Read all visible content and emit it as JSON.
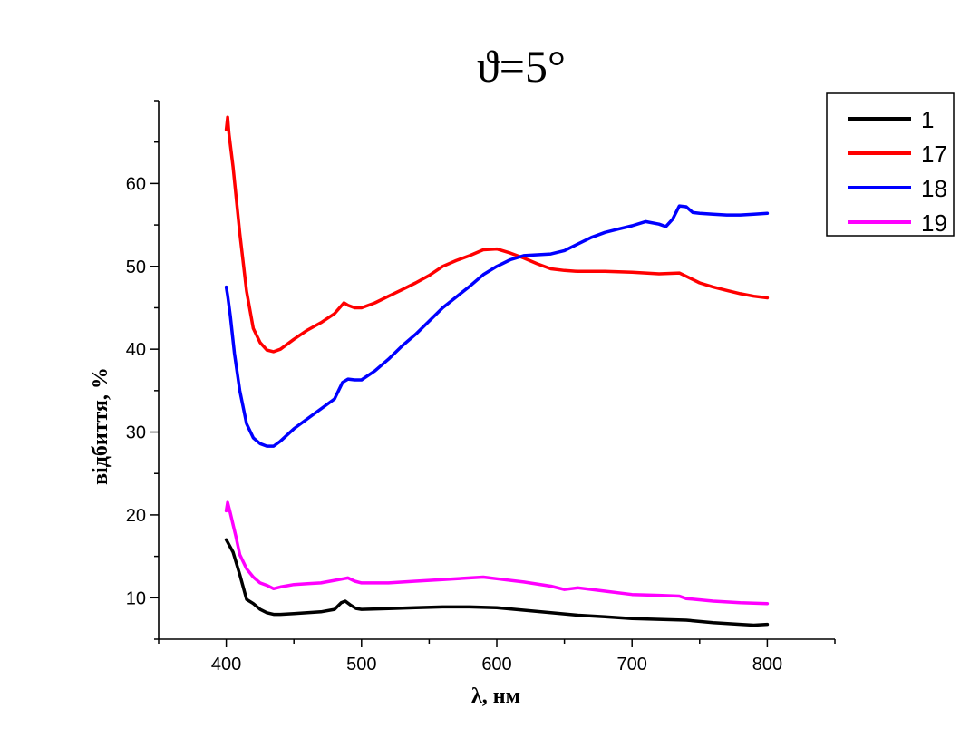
{
  "chart_data": {
    "type": "line",
    "title": "ϑ=5°",
    "xlabel": "λ, нм",
    "ylabel": "відбиття, %",
    "xlim": [
      350,
      850
    ],
    "ylim": [
      5,
      70
    ],
    "x_ticks": [
      400,
      500,
      600,
      700,
      800
    ],
    "y_ticks": [
      10,
      20,
      30,
      40,
      50,
      60
    ],
    "grid": false,
    "legend": "top-right",
    "series": [
      {
        "name": "1",
        "color": "#000000",
        "points": [
          [
            400,
            17
          ],
          [
            405,
            15.5
          ],
          [
            410,
            12.8
          ],
          [
            415,
            9.8
          ],
          [
            420,
            9.3
          ],
          [
            425,
            8.6
          ],
          [
            430,
            8.2
          ],
          [
            435,
            8.0
          ],
          [
            440,
            8.0
          ],
          [
            450,
            8.1
          ],
          [
            460,
            8.2
          ],
          [
            470,
            8.3
          ],
          [
            480,
            8.6
          ],
          [
            485,
            9.4
          ],
          [
            488,
            9.6
          ],
          [
            492,
            9.1
          ],
          [
            496,
            8.7
          ],
          [
            500,
            8.6
          ],
          [
            520,
            8.7
          ],
          [
            540,
            8.8
          ],
          [
            560,
            8.9
          ],
          [
            580,
            8.9
          ],
          [
            600,
            8.8
          ],
          [
            620,
            8.5
          ],
          [
            640,
            8.2
          ],
          [
            660,
            7.9
          ],
          [
            680,
            7.7
          ],
          [
            700,
            7.5
          ],
          [
            720,
            7.4
          ],
          [
            740,
            7.3
          ],
          [
            760,
            7.0
          ],
          [
            780,
            6.8
          ],
          [
            790,
            6.7
          ],
          [
            800,
            6.8
          ]
        ]
      },
      {
        "name": "17",
        "color": "#ff0000",
        "points": [
          [
            400,
            66.5
          ],
          [
            401,
            68
          ],
          [
            402,
            66
          ],
          [
            405,
            62
          ],
          [
            410,
            54
          ],
          [
            415,
            47
          ],
          [
            420,
            42.5
          ],
          [
            425,
            40.8
          ],
          [
            430,
            39.9
          ],
          [
            435,
            39.7
          ],
          [
            440,
            40.0
          ],
          [
            450,
            41.2
          ],
          [
            460,
            42.3
          ],
          [
            470,
            43.2
          ],
          [
            480,
            44.3
          ],
          [
            487,
            45.6
          ],
          [
            490,
            45.3
          ],
          [
            495,
            45.0
          ],
          [
            500,
            45.0
          ],
          [
            510,
            45.6
          ],
          [
            520,
            46.4
          ],
          [
            530,
            47.2
          ],
          [
            540,
            48.0
          ],
          [
            550,
            48.9
          ],
          [
            560,
            50.0
          ],
          [
            570,
            50.7
          ],
          [
            580,
            51.3
          ],
          [
            590,
            52.0
          ],
          [
            600,
            52.1
          ],
          [
            610,
            51.6
          ],
          [
            620,
            51.0
          ],
          [
            630,
            50.3
          ],
          [
            640,
            49.7
          ],
          [
            650,
            49.5
          ],
          [
            660,
            49.4
          ],
          [
            680,
            49.4
          ],
          [
            700,
            49.3
          ],
          [
            720,
            49.1
          ],
          [
            735,
            49.2
          ],
          [
            740,
            48.8
          ],
          [
            750,
            48.0
          ],
          [
            760,
            47.5
          ],
          [
            770,
            47.1
          ],
          [
            780,
            46.7
          ],
          [
            790,
            46.4
          ],
          [
            800,
            46.2
          ]
        ]
      },
      {
        "name": "18",
        "color": "#0000ff",
        "points": [
          [
            400,
            47.5
          ],
          [
            401,
            46.5
          ],
          [
            403,
            44
          ],
          [
            406,
            39.5
          ],
          [
            410,
            35
          ],
          [
            415,
            31
          ],
          [
            420,
            29.3
          ],
          [
            425,
            28.6
          ],
          [
            430,
            28.3
          ],
          [
            435,
            28.3
          ],
          [
            440,
            28.9
          ],
          [
            450,
            30.4
          ],
          [
            460,
            31.6
          ],
          [
            470,
            32.8
          ],
          [
            480,
            34.0
          ],
          [
            486,
            36.0
          ],
          [
            490,
            36.4
          ],
          [
            495,
            36.3
          ],
          [
            500,
            36.3
          ],
          [
            510,
            37.4
          ],
          [
            520,
            38.8
          ],
          [
            530,
            40.4
          ],
          [
            540,
            41.8
          ],
          [
            550,
            43.4
          ],
          [
            560,
            45.0
          ],
          [
            570,
            46.3
          ],
          [
            580,
            47.6
          ],
          [
            590,
            49.0
          ],
          [
            600,
            50.0
          ],
          [
            610,
            50.8
          ],
          [
            620,
            51.3
          ],
          [
            630,
            51.4
          ],
          [
            640,
            51.5
          ],
          [
            650,
            51.9
          ],
          [
            660,
            52.7
          ],
          [
            670,
            53.5
          ],
          [
            680,
            54.1
          ],
          [
            690,
            54.5
          ],
          [
            700,
            54.9
          ],
          [
            710,
            55.4
          ],
          [
            720,
            55.1
          ],
          [
            725,
            54.8
          ],
          [
            730,
            55.7
          ],
          [
            735,
            57.3
          ],
          [
            740,
            57.2
          ],
          [
            745,
            56.5
          ],
          [
            750,
            56.4
          ],
          [
            760,
            56.3
          ],
          [
            770,
            56.2
          ],
          [
            780,
            56.2
          ],
          [
            790,
            56.3
          ],
          [
            800,
            56.4
          ]
        ]
      },
      {
        "name": "19",
        "color": "#ff00ff",
        "points": [
          [
            400,
            20.5
          ],
          [
            401,
            21.5
          ],
          [
            403,
            20.2
          ],
          [
            407,
            17.5
          ],
          [
            410,
            15.2
          ],
          [
            415,
            13.5
          ],
          [
            420,
            12.5
          ],
          [
            425,
            11.8
          ],
          [
            430,
            11.5
          ],
          [
            435,
            11.1
          ],
          [
            440,
            11.3
          ],
          [
            450,
            11.6
          ],
          [
            460,
            11.7
          ],
          [
            470,
            11.8
          ],
          [
            480,
            12.1
          ],
          [
            490,
            12.4
          ],
          [
            495,
            12.0
          ],
          [
            500,
            11.8
          ],
          [
            520,
            11.8
          ],
          [
            540,
            12.0
          ],
          [
            560,
            12.2
          ],
          [
            580,
            12.4
          ],
          [
            590,
            12.5
          ],
          [
            600,
            12.3
          ],
          [
            620,
            11.9
          ],
          [
            640,
            11.4
          ],
          [
            650,
            11.0
          ],
          [
            660,
            11.2
          ],
          [
            680,
            10.8
          ],
          [
            700,
            10.4
          ],
          [
            720,
            10.3
          ],
          [
            735,
            10.2
          ],
          [
            740,
            9.9
          ],
          [
            760,
            9.6
          ],
          [
            780,
            9.4
          ],
          [
            800,
            9.3
          ]
        ]
      }
    ]
  }
}
